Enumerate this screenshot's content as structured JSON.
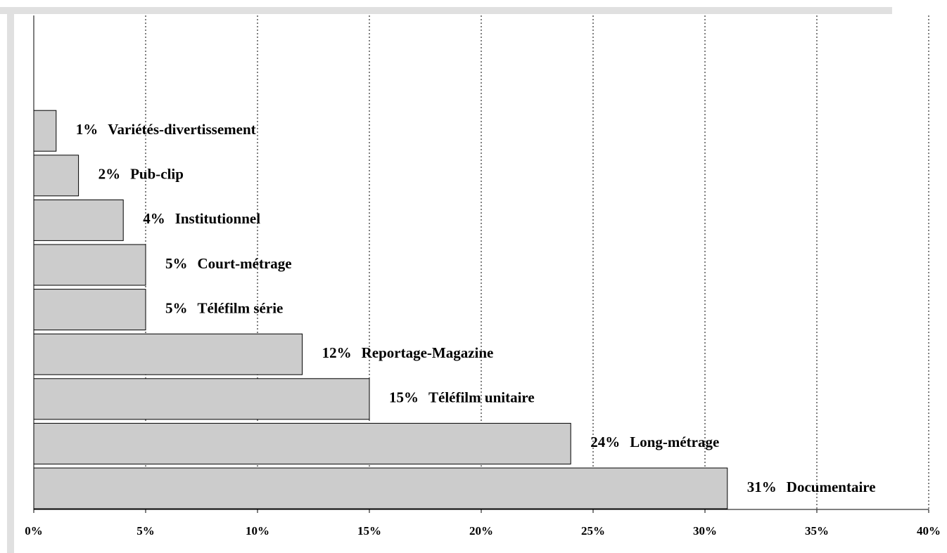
{
  "chart_data": {
    "type": "barh",
    "categories": [
      "Variétés-divertissement",
      "Pub-clip",
      "Institutionnel",
      "Court-métrage",
      "Téléfilm série",
      "Reportage-Magazine",
      "Téléfilm unitaire",
      "Long-métrage",
      "Documentaire"
    ],
    "values": [
      1,
      2,
      4,
      5,
      5,
      12,
      15,
      24,
      31
    ],
    "value_labels": [
      "1%",
      "2%",
      "4%",
      "5%",
      "5%",
      "12%",
      "15%",
      "24%",
      "31%"
    ],
    "color": "#cccccc",
    "xlim": [
      0,
      40
    ],
    "xticks": [
      {
        "value": 0,
        "label": "0%"
      },
      {
        "value": 5,
        "label": "5%"
      },
      {
        "value": 10,
        "label": "10%"
      },
      {
        "value": 15,
        "label": "15%"
      },
      {
        "value": 20,
        "label": "20%"
      },
      {
        "value": 25,
        "label": "25%"
      },
      {
        "value": 30,
        "label": "30%"
      },
      {
        "value": 35,
        "label": "35%"
      },
      {
        "value": 40,
        "label": "40%"
      }
    ],
    "grid": true
  }
}
